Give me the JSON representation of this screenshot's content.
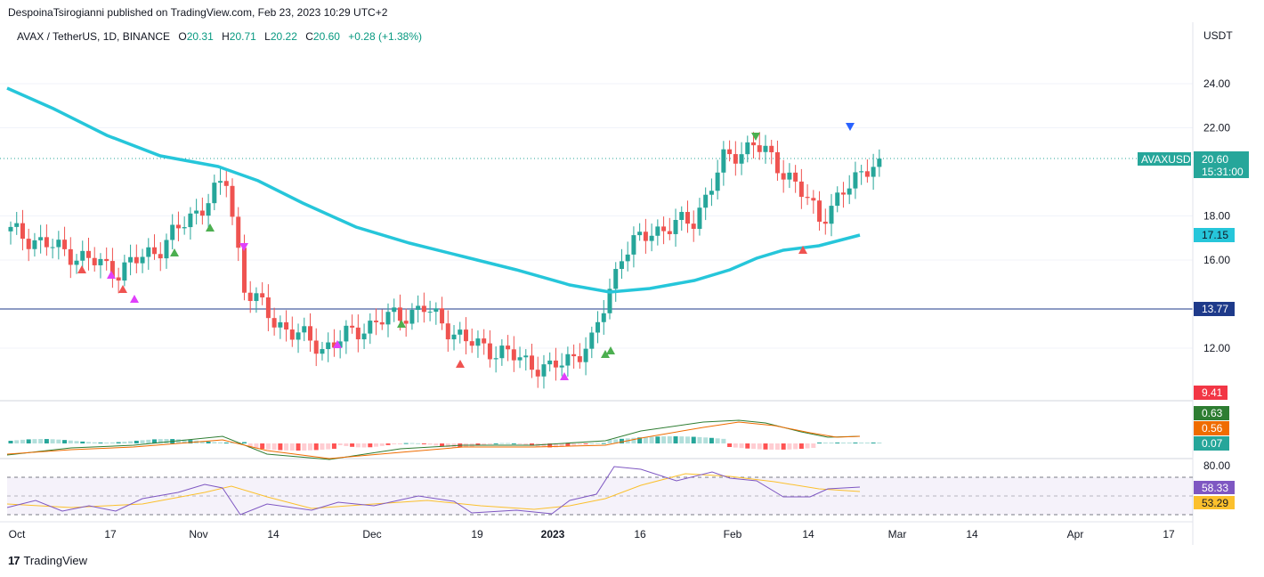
{
  "header": {
    "published_by": "DespoinaTsirogianni published on TradingView.com, Feb 23, 2023 10:29 UTC+2"
  },
  "legend": {
    "symbol": "AVAX / TetherUS, 1D, BINANCE",
    "open_label": "O",
    "open": "20.31",
    "high_label": "H",
    "high": "20.71",
    "low_label": "L",
    "low": "20.22",
    "close_label": "C",
    "close": "20.60",
    "change": "+0.28 (+1.38%)"
  },
  "price_axis": {
    "currency": "USDT",
    "ticks": [
      "24.00",
      "22.00",
      "18.00",
      "16.00",
      "12.00"
    ],
    "tag_symbol": "AVAXUSDT",
    "tag_price": "20.60",
    "tag_countdown": "15:31:00",
    "tag_ma": "17.15",
    "tag_hline": "13.77",
    "tag_low": "9.41",
    "macd_tags": [
      "0.63",
      "0.56",
      "0.07"
    ],
    "rsi_top": "80.00",
    "rsi_tags": [
      "58.33",
      "53.29"
    ]
  },
  "time_axis": {
    "labels": [
      "Oct",
      "17",
      "Nov",
      "14",
      "Dec",
      "19",
      "2023",
      "16",
      "Feb",
      "14",
      "Mar",
      "14",
      "Apr",
      "17"
    ]
  },
  "footer": {
    "brand": "TradingView",
    "logo": "17"
  },
  "colors": {
    "up": "#26a69a",
    "down": "#ef5350",
    "ma": "#26c6da",
    "hline": "#1e3a8a",
    "macd_line": "#2e7d32",
    "signal_line": "#ef6c00",
    "rsi_line": "#7e57c2",
    "rsi_ma": "#fbc02d"
  },
  "chart_data": {
    "type": "candlestick",
    "symbol": "AVAX / TetherUS",
    "timeframe": "1D",
    "exchange": "BINANCE",
    "ylabel": "USDT",
    "ylim": [
      9.41,
      25
    ],
    "horizontal_line": 13.77,
    "last_close": 20.6,
    "moving_average_last": 17.15,
    "close_path_approx": [
      {
        "date": "Oct 1",
        "close": 17.3
      },
      {
        "date": "Oct 12",
        "close": 16.2
      },
      {
        "date": "Oct 19",
        "close": 15.5
      },
      {
        "date": "Oct 26",
        "close": 16.6
      },
      {
        "date": "Nov 1",
        "close": 18.2
      },
      {
        "date": "Nov 6",
        "close": 19.6
      },
      {
        "date": "Nov 9",
        "close": 14.8
      },
      {
        "date": "Nov 14",
        "close": 13.2
      },
      {
        "date": "Nov 22",
        "close": 12.0
      },
      {
        "date": "Dec 1",
        "close": 13.2
      },
      {
        "date": "Dec 9",
        "close": 13.8
      },
      {
        "date": "Dec 16",
        "close": 12.3
      },
      {
        "date": "Dec 22",
        "close": 11.8
      },
      {
        "date": "Dec 30",
        "close": 11.0
      },
      {
        "date": "Jan 6",
        "close": 12.2
      },
      {
        "date": "Jan 11",
        "close": 16.3
      },
      {
        "date": "Jan 16",
        "close": 17.3
      },
      {
        "date": "Jan 23",
        "close": 17.8
      },
      {
        "date": "Jan 28",
        "close": 20.5
      },
      {
        "date": "Feb 2",
        "close": 21.3
      },
      {
        "date": "Feb 8",
        "close": 19.8
      },
      {
        "date": "Feb 13",
        "close": 17.9
      },
      {
        "date": "Feb 18",
        "close": 19.3
      },
      {
        "date": "Feb 21",
        "close": 20.3
      },
      {
        "date": "Feb 23",
        "close": 20.6
      }
    ],
    "indicators": {
      "macd": {
        "macd": 0.63,
        "signal": 0.56,
        "histogram": 0.07
      },
      "rsi": {
        "rsi": 58.33,
        "rsi_ma": 53.29,
        "upper_band": 80.0
      }
    }
  }
}
